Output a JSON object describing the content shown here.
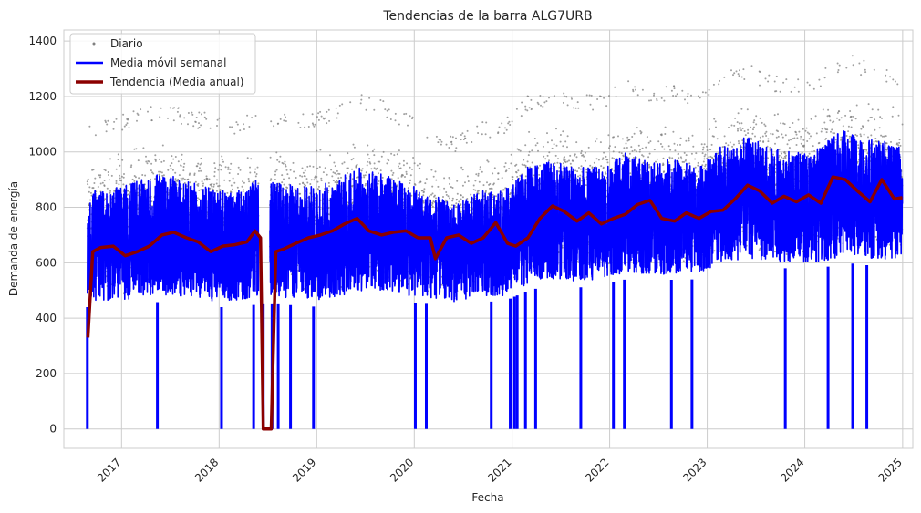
{
  "chart_data": {
    "type": "line",
    "title": "Tendencias de la barra ALG7URB",
    "xlabel": "Fecha",
    "ylabel": "Demanda de energía",
    "x_range": [
      "2016-05-30",
      "2025-02-08"
    ],
    "ylim": [
      -70,
      1440
    ],
    "grid": true,
    "legend_position": "top-left",
    "x_ticks": [
      "2017",
      "2018",
      "2019",
      "2020",
      "2021",
      "2022",
      "2023",
      "2024",
      "2025"
    ],
    "x_tick_dates": [
      "2017-01-01",
      "2018-01-01",
      "2019-01-01",
      "2020-01-01",
      "2021-01-01",
      "2022-01-01",
      "2023-01-01",
      "2024-01-01",
      "2025-01-01"
    ],
    "y_ticks": [
      0,
      200,
      400,
      600,
      800,
      1000,
      1200,
      1400
    ],
    "series": [
      {
        "name": "Diario",
        "kind": "scatter",
        "color": "#808080",
        "band": {
          "x": [
            "2016-09-01",
            "2016-12-01",
            "2017-03-01",
            "2017-06-01",
            "2017-09-01",
            "2017-12-01",
            "2018-03-01",
            "2018-06-01",
            "2018-09-01",
            "2018-12-01",
            "2019-03-01",
            "2019-06-01",
            "2019-09-01",
            "2019-12-01",
            "2020-03-01",
            "2020-06-01",
            "2020-09-01",
            "2020-12-01",
            "2021-03-01",
            "2021-06-01",
            "2021-09-01",
            "2021-12-01",
            "2022-03-01",
            "2022-06-01",
            "2022-09-01",
            "2022-12-01",
            "2023-03-01",
            "2023-06-01",
            "2023-09-01",
            "2023-12-01",
            "2024-03-01",
            "2024-06-01",
            "2024-09-01",
            "2024-12-01"
          ],
          "low": [
            420,
            410,
            430,
            440,
            430,
            420,
            415,
            430,
            430,
            420,
            430,
            450,
            450,
            440,
            430,
            420,
            440,
            440,
            480,
            500,
            490,
            500,
            520,
            510,
            520,
            520,
            560,
            570,
            560,
            560,
            560,
            580,
            570,
            570
          ],
          "high": [
            1050,
            1060,
            1100,
            1120,
            1090,
            1080,
            1060,
            1100,
            1080,
            1080,
            1100,
            1150,
            1130,
            1080,
            1040,
            1000,
            1050,
            1050,
            1150,
            1170,
            1150,
            1150,
            1200,
            1170,
            1180,
            1150,
            1230,
            1260,
            1220,
            1200,
            1230,
            1300,
            1260,
            1230
          ]
        }
      },
      {
        "name": "Media móvil semanal",
        "kind": "line",
        "color": "#0000ff",
        "band": {
          "x": [
            "2016-09-01",
            "2016-12-01",
            "2017-03-01",
            "2017-06-01",
            "2017-09-01",
            "2017-12-01",
            "2018-03-01",
            "2018-06-01",
            "2018-09-01",
            "2018-12-01",
            "2019-03-01",
            "2019-06-01",
            "2019-09-01",
            "2019-12-01",
            "2020-03-01",
            "2020-06-01",
            "2020-09-01",
            "2020-12-01",
            "2021-03-01",
            "2021-06-01",
            "2021-09-01",
            "2021-12-01",
            "2022-03-01",
            "2022-06-01",
            "2022-09-01",
            "2022-12-01",
            "2023-03-01",
            "2023-06-01",
            "2023-09-01",
            "2023-12-01",
            "2024-03-01",
            "2024-06-01",
            "2024-09-01",
            "2024-12-01"
          ],
          "low": [
            440,
            440,
            450,
            460,
            450,
            440,
            440,
            450,
            450,
            440,
            450,
            470,
            470,
            460,
            450,
            440,
            460,
            460,
            500,
            520,
            510,
            520,
            540,
            530,
            540,
            540,
            580,
            590,
            580,
            580,
            580,
            600,
            590,
            590
          ],
          "high": [
            880,
            890,
            920,
            950,
            920,
            900,
            880,
            930,
            910,
            900,
            920,
            970,
            950,
            910,
            870,
            830,
            880,
            880,
            970,
            990,
            970,
            970,
            1020,
            990,
            1000,
            970,
            1050,
            1080,
            1040,
            1020,
            1050,
            1110,
            1080,
            1050
          ]
        },
        "dips_to_zero": [
          "2016-08-26",
          "2017-05-15",
          "2018-01-10",
          "2018-05-10",
          "2018-06-15",
          "2018-07-18",
          "2018-08-10",
          "2018-09-25",
          "2018-12-20",
          "2020-01-05",
          "2020-02-15",
          "2020-10-15",
          "2020-12-25",
          "2021-01-10",
          "2021-01-20",
          "2021-02-20",
          "2021-03-30",
          "2021-09-15",
          "2022-01-15",
          "2022-02-25",
          "2022-08-20",
          "2022-11-05",
          "2023-10-20",
          "2024-03-28",
          "2024-06-28",
          "2024-08-20"
        ]
      },
      {
        "name": "Tendencia (Media anual)",
        "kind": "line",
        "color": "#8b0000",
        "x": [
          "2016-08-28",
          "2016-09-15",
          "2016-10-15",
          "2016-12-01",
          "2017-01-15",
          "2017-03-01",
          "2017-04-15",
          "2017-06-01",
          "2017-07-15",
          "2017-09-01",
          "2017-10-15",
          "2017-12-01",
          "2018-01-15",
          "2018-03-01",
          "2018-04-15",
          "2018-05-15",
          "2018-06-05",
          "2018-06-15",
          "2018-07-15",
          "2018-08-01",
          "2018-09-01",
          "2018-10-15",
          "2018-12-01",
          "2019-01-15",
          "2019-03-01",
          "2019-04-15",
          "2019-06-01",
          "2019-07-15",
          "2019-09-01",
          "2019-10-15",
          "2019-12-01",
          "2020-01-15",
          "2020-03-01",
          "2020-03-20",
          "2020-05-01",
          "2020-06-15",
          "2020-08-01",
          "2020-09-15",
          "2020-11-01",
          "2020-12-15",
          "2021-01-15",
          "2021-03-01",
          "2021-04-15",
          "2021-06-01",
          "2021-07-15",
          "2021-09-01",
          "2021-10-15",
          "2021-12-01",
          "2022-01-15",
          "2022-03-01",
          "2022-04-15",
          "2022-06-01",
          "2022-07-15",
          "2022-09-01",
          "2022-10-15",
          "2022-12-01",
          "2023-01-15",
          "2023-03-01",
          "2023-04-15",
          "2023-06-01",
          "2023-07-15",
          "2023-09-01",
          "2023-10-15",
          "2023-12-01",
          "2024-01-15",
          "2024-03-01",
          "2024-04-15",
          "2024-06-01",
          "2024-07-15",
          "2024-09-01",
          "2024-10-15",
          "2024-12-01",
          "2024-12-31"
        ],
        "y": [
          330,
          640,
          655,
          660,
          625,
          640,
          660,
          700,
          710,
          690,
          675,
          640,
          660,
          665,
          675,
          715,
          690,
          0,
          0,
          640,
          650,
          670,
          690,
          700,
          715,
          740,
          760,
          715,
          700,
          710,
          715,
          690,
          690,
          615,
          690,
          700,
          670,
          690,
          745,
          670,
          660,
          690,
          760,
          805,
          785,
          750,
          780,
          740,
          760,
          775,
          810,
          825,
          760,
          750,
          780,
          760,
          785,
          790,
          830,
          880,
          860,
          815,
          840,
          820,
          845,
          815,
          910,
          900,
          860,
          820,
          900,
          830,
          835
        ]
      }
    ]
  }
}
